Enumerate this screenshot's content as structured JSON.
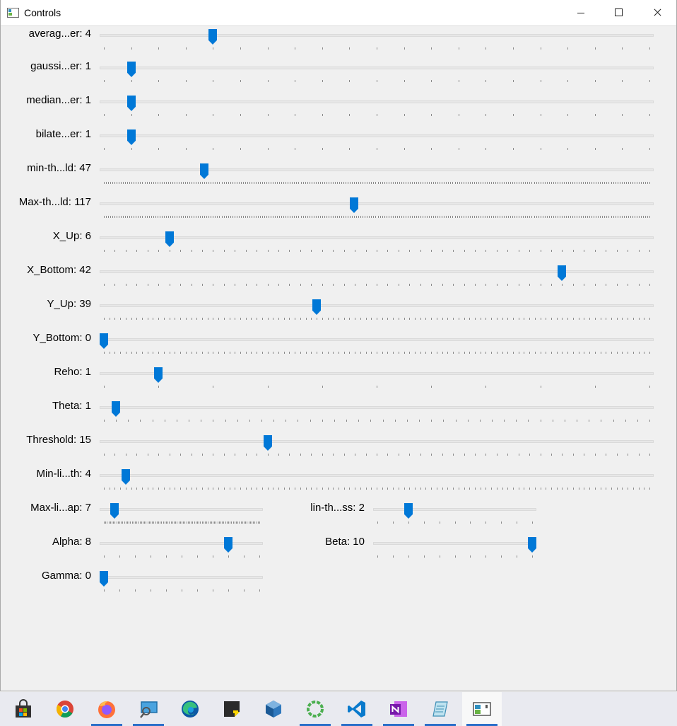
{
  "window": {
    "title": "Controls"
  },
  "controls": [
    {
      "label": "averag...er: 4",
      "value": 4,
      "max": 20
    },
    {
      "label": "gaussi...er: 1",
      "value": 1,
      "max": 20
    },
    {
      "label": "median...er: 1",
      "value": 1,
      "max": 20
    },
    {
      "label": "bilate...er: 1",
      "value": 1,
      "max": 20
    },
    {
      "label": "min-th...ld: 47",
      "value": 47,
      "max": 255
    },
    {
      "label": "Max-th...ld: 117",
      "value": 117,
      "max": 255
    },
    {
      "label": "X_Up: 6",
      "value": 6,
      "max": 50
    },
    {
      "label": "X_Bottom: 42",
      "value": 42,
      "max": 50
    },
    {
      "label": "Y_Up: 39",
      "value": 39,
      "max": 100
    },
    {
      "label": "Y_Bottom: 0",
      "value": 0,
      "max": 100
    },
    {
      "label": "Reho: 1",
      "value": 1,
      "max": 10
    },
    {
      "label": "Theta: 1",
      "value": 1,
      "max": 45
    },
    {
      "label": "Threshold: 15",
      "value": 15,
      "max": 50
    },
    {
      "label": "Min-li...th: 4",
      "value": 4,
      "max": 100
    },
    {
      "label": "Max-li...ap: 7",
      "value": 7,
      "max": 100
    },
    {
      "label": "lin-th...ss: 2",
      "value": 2,
      "max": 10
    },
    {
      "label": "Alpha: 8",
      "value": 8,
      "max": 10
    },
    {
      "label": "Beta: 10",
      "value": 10,
      "max": 10
    },
    {
      "label": "Gamma: 0",
      "value": 0,
      "max": 10
    }
  ],
  "taskbar": {
    "items": [
      {
        "name": "microsoft-store-icon"
      },
      {
        "name": "chrome-icon"
      },
      {
        "name": "firefox-icon"
      },
      {
        "name": "remote-desktop-icon"
      },
      {
        "name": "edge-icon"
      },
      {
        "name": "sticky-notes-icon"
      },
      {
        "name": "virtualbox-icon"
      },
      {
        "name": "spinner-app-icon"
      },
      {
        "name": "vscode-icon"
      },
      {
        "name": "onenote-icon"
      },
      {
        "name": "notepad-icon"
      },
      {
        "name": "controls-window-icon"
      }
    ]
  },
  "colors": {
    "thumb": "#0078d7",
    "taskbar_indicator": "#2a6fc9"
  }
}
